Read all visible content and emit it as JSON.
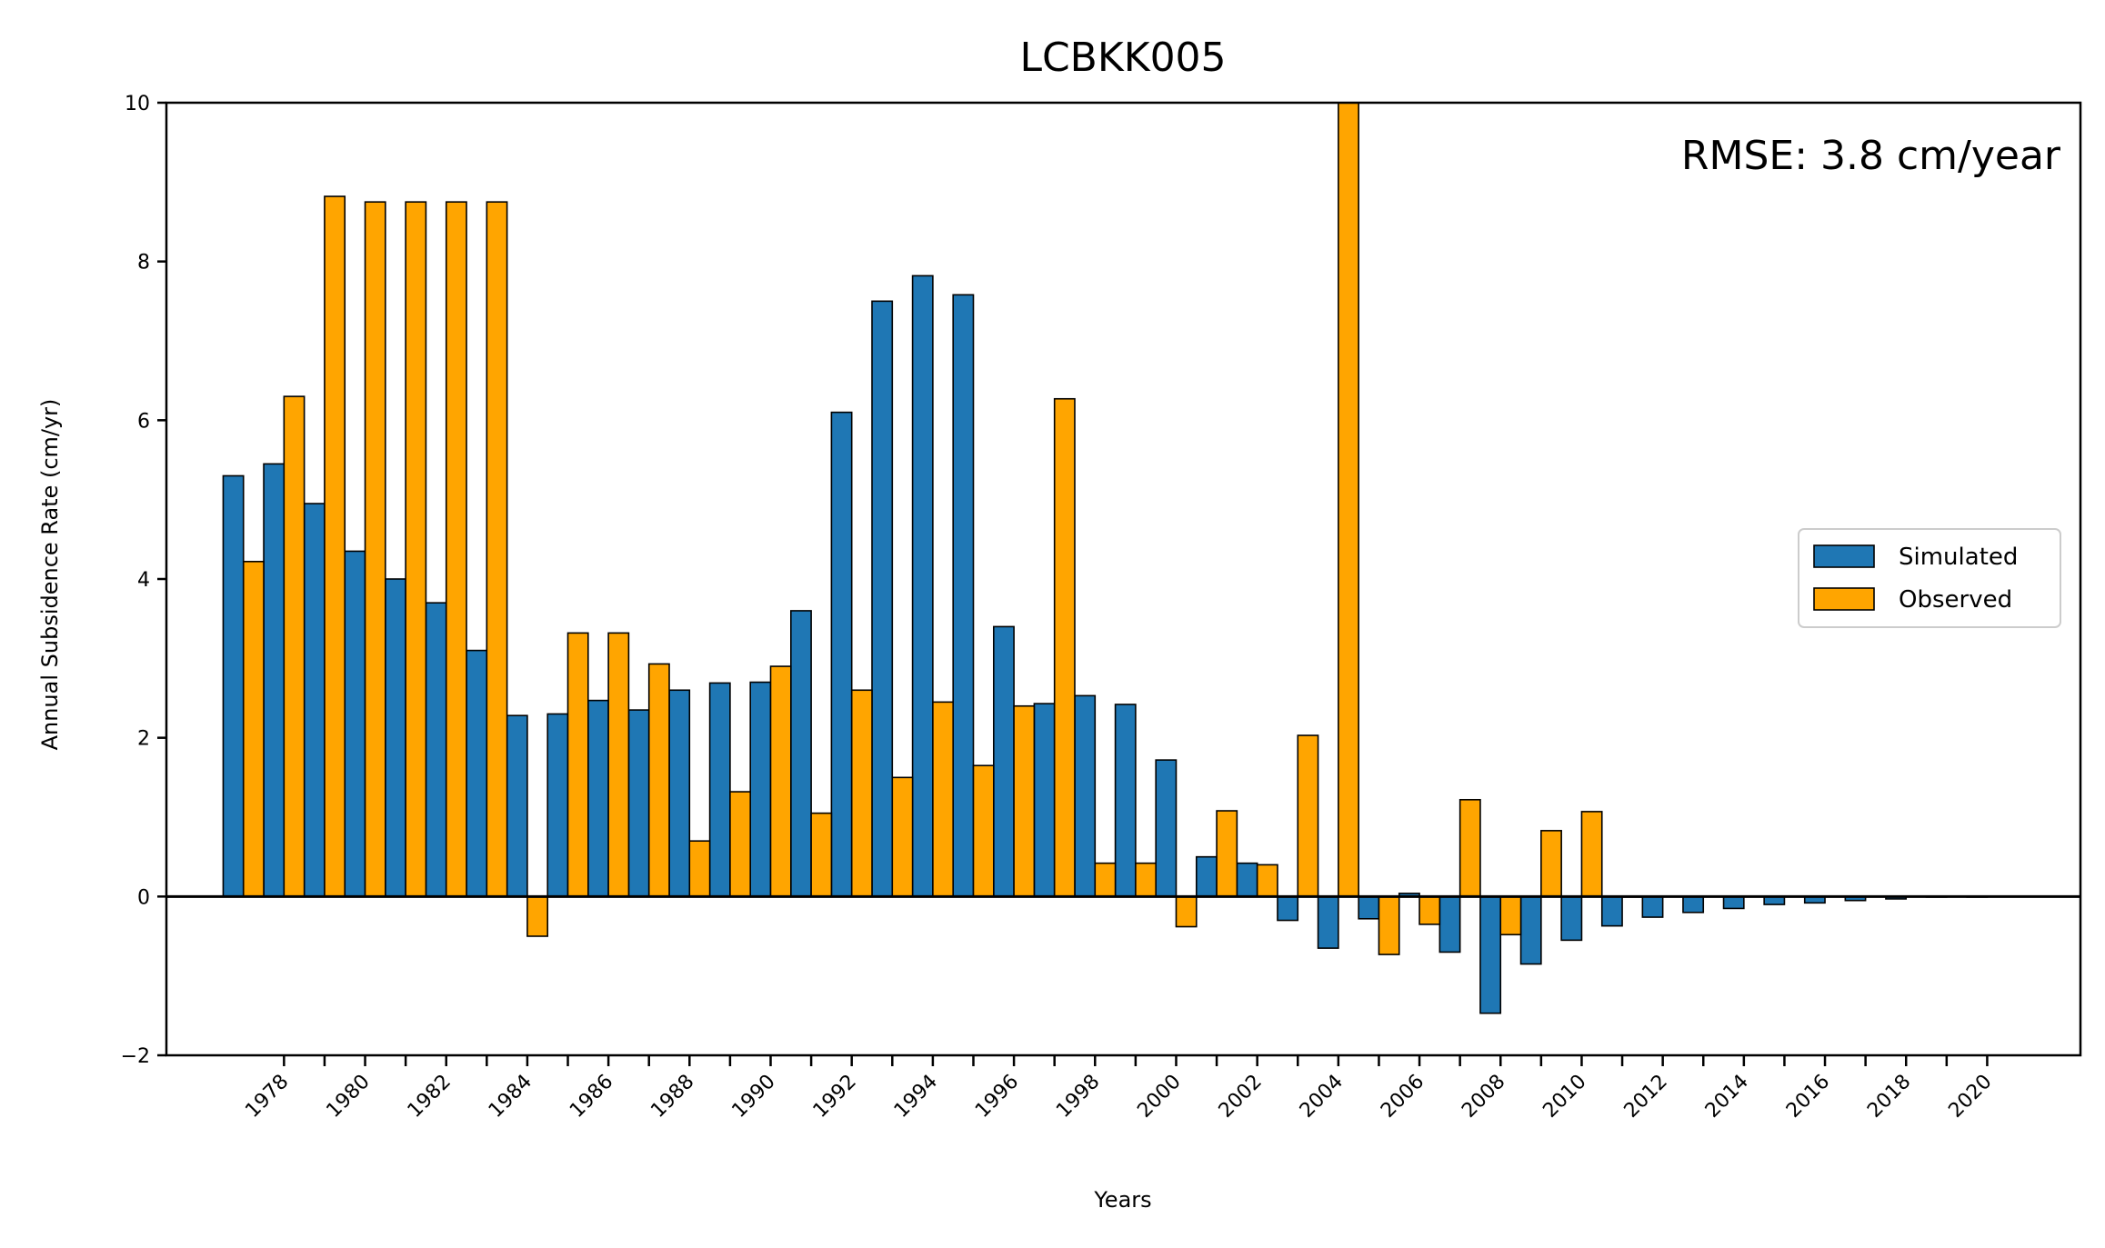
{
  "chart_data": {
    "type": "bar",
    "title": "LCBKK005",
    "xlabel": "Years",
    "ylabel": "Annual Subsidence Rate (cm/yr)",
    "annotation": "RMSE: 3.8 cm/year",
    "ylim": [
      -2,
      10
    ],
    "yticks": [
      -2,
      0,
      2,
      4,
      6,
      8,
      10
    ],
    "xlim": [
      1975.1,
      2022.3
    ],
    "x_tick_labels": [
      "1978",
      "1980",
      "1982",
      "1984",
      "1986",
      "1988",
      "1990",
      "1992",
      "1994",
      "1996",
      "1998",
      "2000",
      "2002",
      "2004",
      "2006",
      "2008",
      "2010",
      "2012",
      "2014",
      "2016",
      "2018",
      "2020"
    ],
    "grid": false,
    "legend_position": "center-right",
    "bar_width_years": 0.5,
    "series": [
      {
        "name": "Simulated",
        "color": "#1f77b4",
        "offset": -0.25,
        "x": [
          1977,
          1978,
          1979,
          1980,
          1981,
          1982,
          1983,
          1984,
          1985,
          1986,
          1987,
          1988,
          1989,
          1990,
          1991,
          1992,
          1993,
          1994,
          1995,
          1996,
          1997,
          1998,
          1999,
          2000,
          2001,
          2002,
          2003,
          2004,
          2005,
          2006,
          2007,
          2008,
          2009,
          2010,
          2011,
          2012,
          2013,
          2014,
          2015,
          2016,
          2017,
          2018,
          2019,
          2020
        ],
        "values": [
          5.3,
          5.45,
          4.95,
          4.35,
          4.0,
          3.7,
          3.1,
          2.28,
          2.3,
          2.47,
          2.35,
          2.6,
          2.69,
          2.7,
          3.6,
          6.1,
          7.5,
          7.82,
          7.58,
          3.4,
          2.43,
          2.53,
          2.42,
          1.72,
          0.5,
          0.42,
          -0.3,
          -0.65,
          -0.28,
          0.04,
          -0.7,
          -1.47,
          -0.85,
          -0.55,
          -0.37,
          -0.26,
          -0.2,
          -0.15,
          -0.1,
          -0.08,
          -0.05,
          -0.03,
          0,
          0
        ]
      },
      {
        "name": "Observed",
        "color": "#ffa500",
        "offset": 0.25,
        "x": [
          1977,
          1978,
          1979,
          1980,
          1981,
          1982,
          1983,
          1984,
          1985,
          1986,
          1987,
          1988,
          1989,
          1990,
          1991,
          1992,
          1993,
          1994,
          1995,
          1996,
          1997,
          1998,
          1999,
          2000,
          2001,
          2002,
          2003,
          2004,
          2005,
          2006,
          2007,
          2008,
          2009,
          2010,
          2011
        ],
        "values": [
          4.22,
          6.3,
          8.82,
          8.75,
          8.75,
          8.75,
          8.75,
          -0.5,
          3.32,
          3.32,
          2.93,
          0.7,
          1.32,
          2.9,
          1.05,
          2.6,
          1.5,
          2.45,
          1.65,
          2.4,
          6.27,
          0.42,
          0.42,
          -0.38,
          1.08,
          0.4,
          2.03,
          10.0,
          -0.73,
          -0.35,
          1.22,
          -0.48,
          0.83,
          1.07,
          0
        ]
      }
    ]
  }
}
